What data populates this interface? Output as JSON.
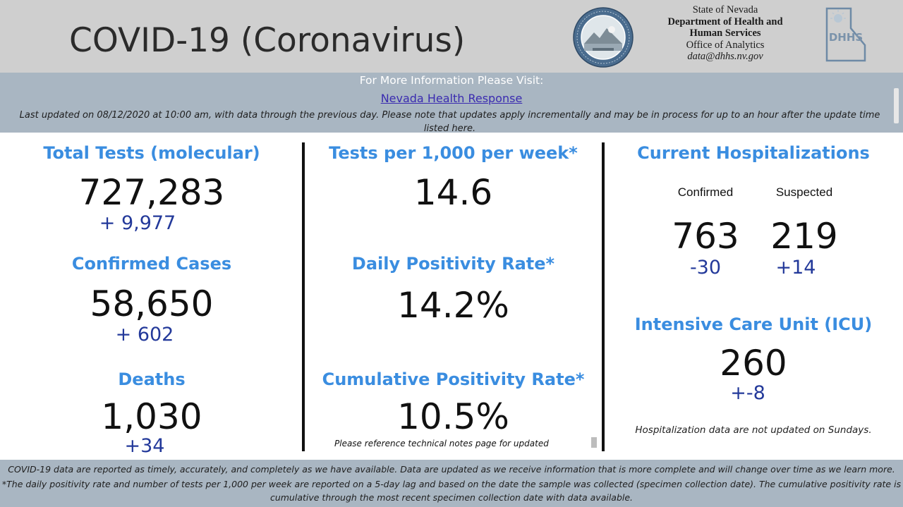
{
  "header": {
    "title": "COVID-19 (Coronavirus)",
    "agency": {
      "line1": "State of Nevada",
      "line2": "Department of Health and",
      "line3": "Human Services",
      "line4": "Office of Analytics",
      "email": "data@dhhs.nv.gov"
    },
    "seal_icon": "nevada-state-seal-icon",
    "logo_icon": "dhhs-logo-icon",
    "logo_text": "DHHS"
  },
  "info": {
    "title": "For More Information Please Visit:",
    "link_text": "Nevada Health Response",
    "updated": "Last updated on 08/12/2020 at 10:00 am, with data through the previous day.  Please note that updates apply incrementally and may be in process for up to an hour after the update time listed here."
  },
  "left": {
    "tests": {
      "label": "Total Tests (molecular)",
      "value": "727,283",
      "delta": "+  9,977"
    },
    "cases": {
      "label": "Confirmed Cases",
      "value": "58,650",
      "delta": "+ 602"
    },
    "deaths": {
      "label": "Deaths",
      "value": "1,030",
      "delta": "+34"
    }
  },
  "middle": {
    "per1000": {
      "label": "Tests per 1,000 per week*",
      "value": "14.6"
    },
    "daily": {
      "label": "Daily Positivity Rate*",
      "value": "14.2%"
    },
    "cumulative": {
      "label": "Cumulative Positivity Rate*",
      "value": "10.5%",
      "note": "Please reference technical notes page for updated"
    }
  },
  "right": {
    "hosp": {
      "label": "Current Hospitalizations",
      "confirmed_label": "Confirmed",
      "suspected_label": "Suspected",
      "confirmed_value": "763",
      "suspected_value": "219",
      "confirmed_delta": "-30",
      "suspected_delta": "+14"
    },
    "icu": {
      "label": "Intensive Care Unit (ICU)",
      "value": "260",
      "delta": "+-8"
    },
    "note": "Hospitalization data are not updated on Sundays."
  },
  "footer": {
    "line1": "COVID-19 data are reported as timely, accurately, and completely as we have available.  Data are updated as we receive information that is more complete and will change over time as we learn more.",
    "line2": "*The daily positivity rate and number of tests per 1,000 per week are reported on a 5-day lag and based on the date the sample was collected (specimen collection date).  The cumulative positivity rate is",
    "line3": "cumulative through the most recent specimen collection date with data available."
  },
  "colors": {
    "header_bg": "#cfcfcf",
    "bar_bg": "#a9b6c2",
    "heading_blue": "#3a8de0",
    "delta_navy": "#23399a"
  }
}
